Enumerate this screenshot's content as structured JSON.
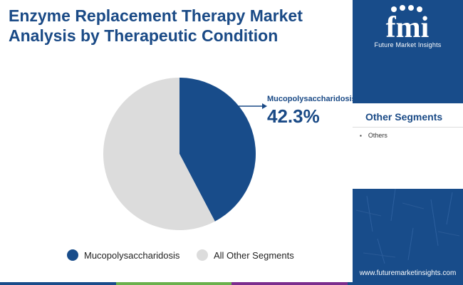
{
  "title": {
    "line1": "Enzyme Replacement Therapy Market",
    "line2": "Analysis by Therapeutic Condition"
  },
  "chart_data": {
    "type": "pie",
    "title": "Enzyme Replacement Therapy Market Analysis by Therapeutic Condition",
    "categories": [
      "Mucopolysaccharidosis",
      "All Other Segments"
    ],
    "values": [
      42.3,
      57.7
    ],
    "colors": [
      "#184c8a",
      "#dcdcdc"
    ],
    "legend_position": "bottom",
    "annotations": [
      {
        "category": "Mucopolysaccharidosis",
        "label": "Mucopolysaccharidosis",
        "value_text": "42.3%"
      }
    ]
  },
  "brand": {
    "logo_letters": "fmi",
    "name": "Future Market Insights",
    "website": "www.futuremarketinsights.com",
    "color": "#184c8a"
  },
  "sidebar": {
    "heading": "Other Segments",
    "items": [
      "Others"
    ]
  },
  "footer": {
    "strip_colors": [
      "#184c8a",
      "#6ab04c",
      "#7b2d8e",
      "#184c8a"
    ]
  }
}
